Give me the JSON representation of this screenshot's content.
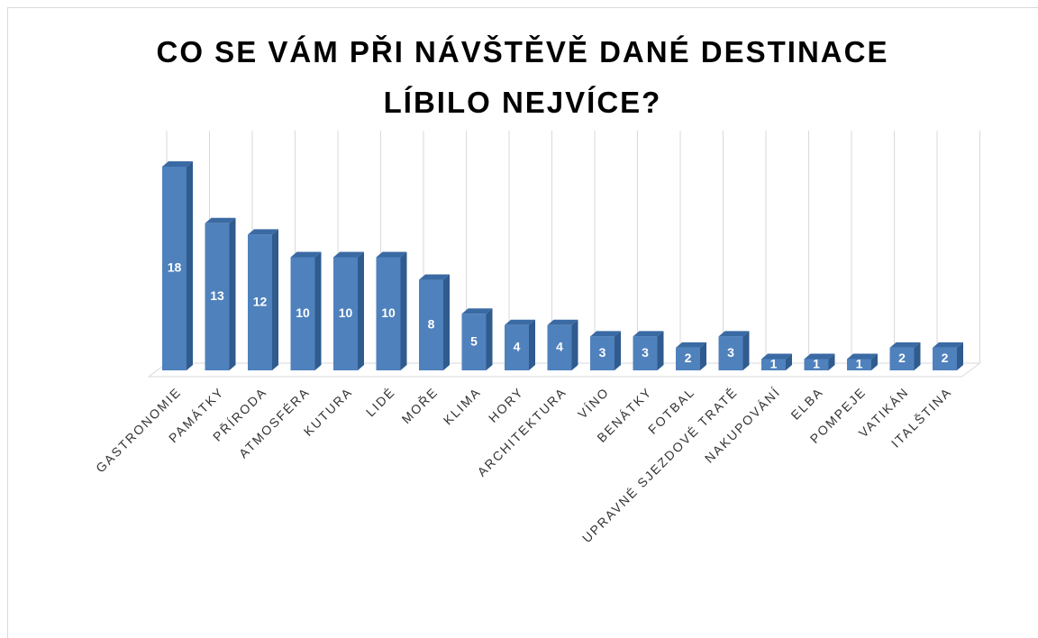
{
  "chart_data": {
    "type": "bar3d",
    "title": "CO SE VÁM PŘI NÁVŠTĚVĚ DANÉ DESTINACE LÍBILO NEJVÍCE?",
    "categories": [
      "GASTRONOMIE",
      "PAMÁTKY",
      "PŘÍRODA",
      "ATMOSFÉRA",
      "KUTURA",
      "LIDÉ",
      "MOŘE",
      "KLIMA",
      "HORY",
      "ARCHITEKTURA",
      "VÍNO",
      "BENÁTKY",
      "FOTBAL",
      "UPRAVNÉ SJEZDOVÉ TRATĚ",
      "NAKUPOVÁNÍ",
      "ELBA",
      "POMPEJE",
      "VATIKÁN",
      "ITALŠTINA"
    ],
    "values": [
      18,
      13,
      12,
      10,
      10,
      10,
      8,
      5,
      4,
      4,
      3,
      3,
      2,
      3,
      1,
      1,
      1,
      2,
      2
    ],
    "color": "#4f81bd",
    "grid": true
  }
}
